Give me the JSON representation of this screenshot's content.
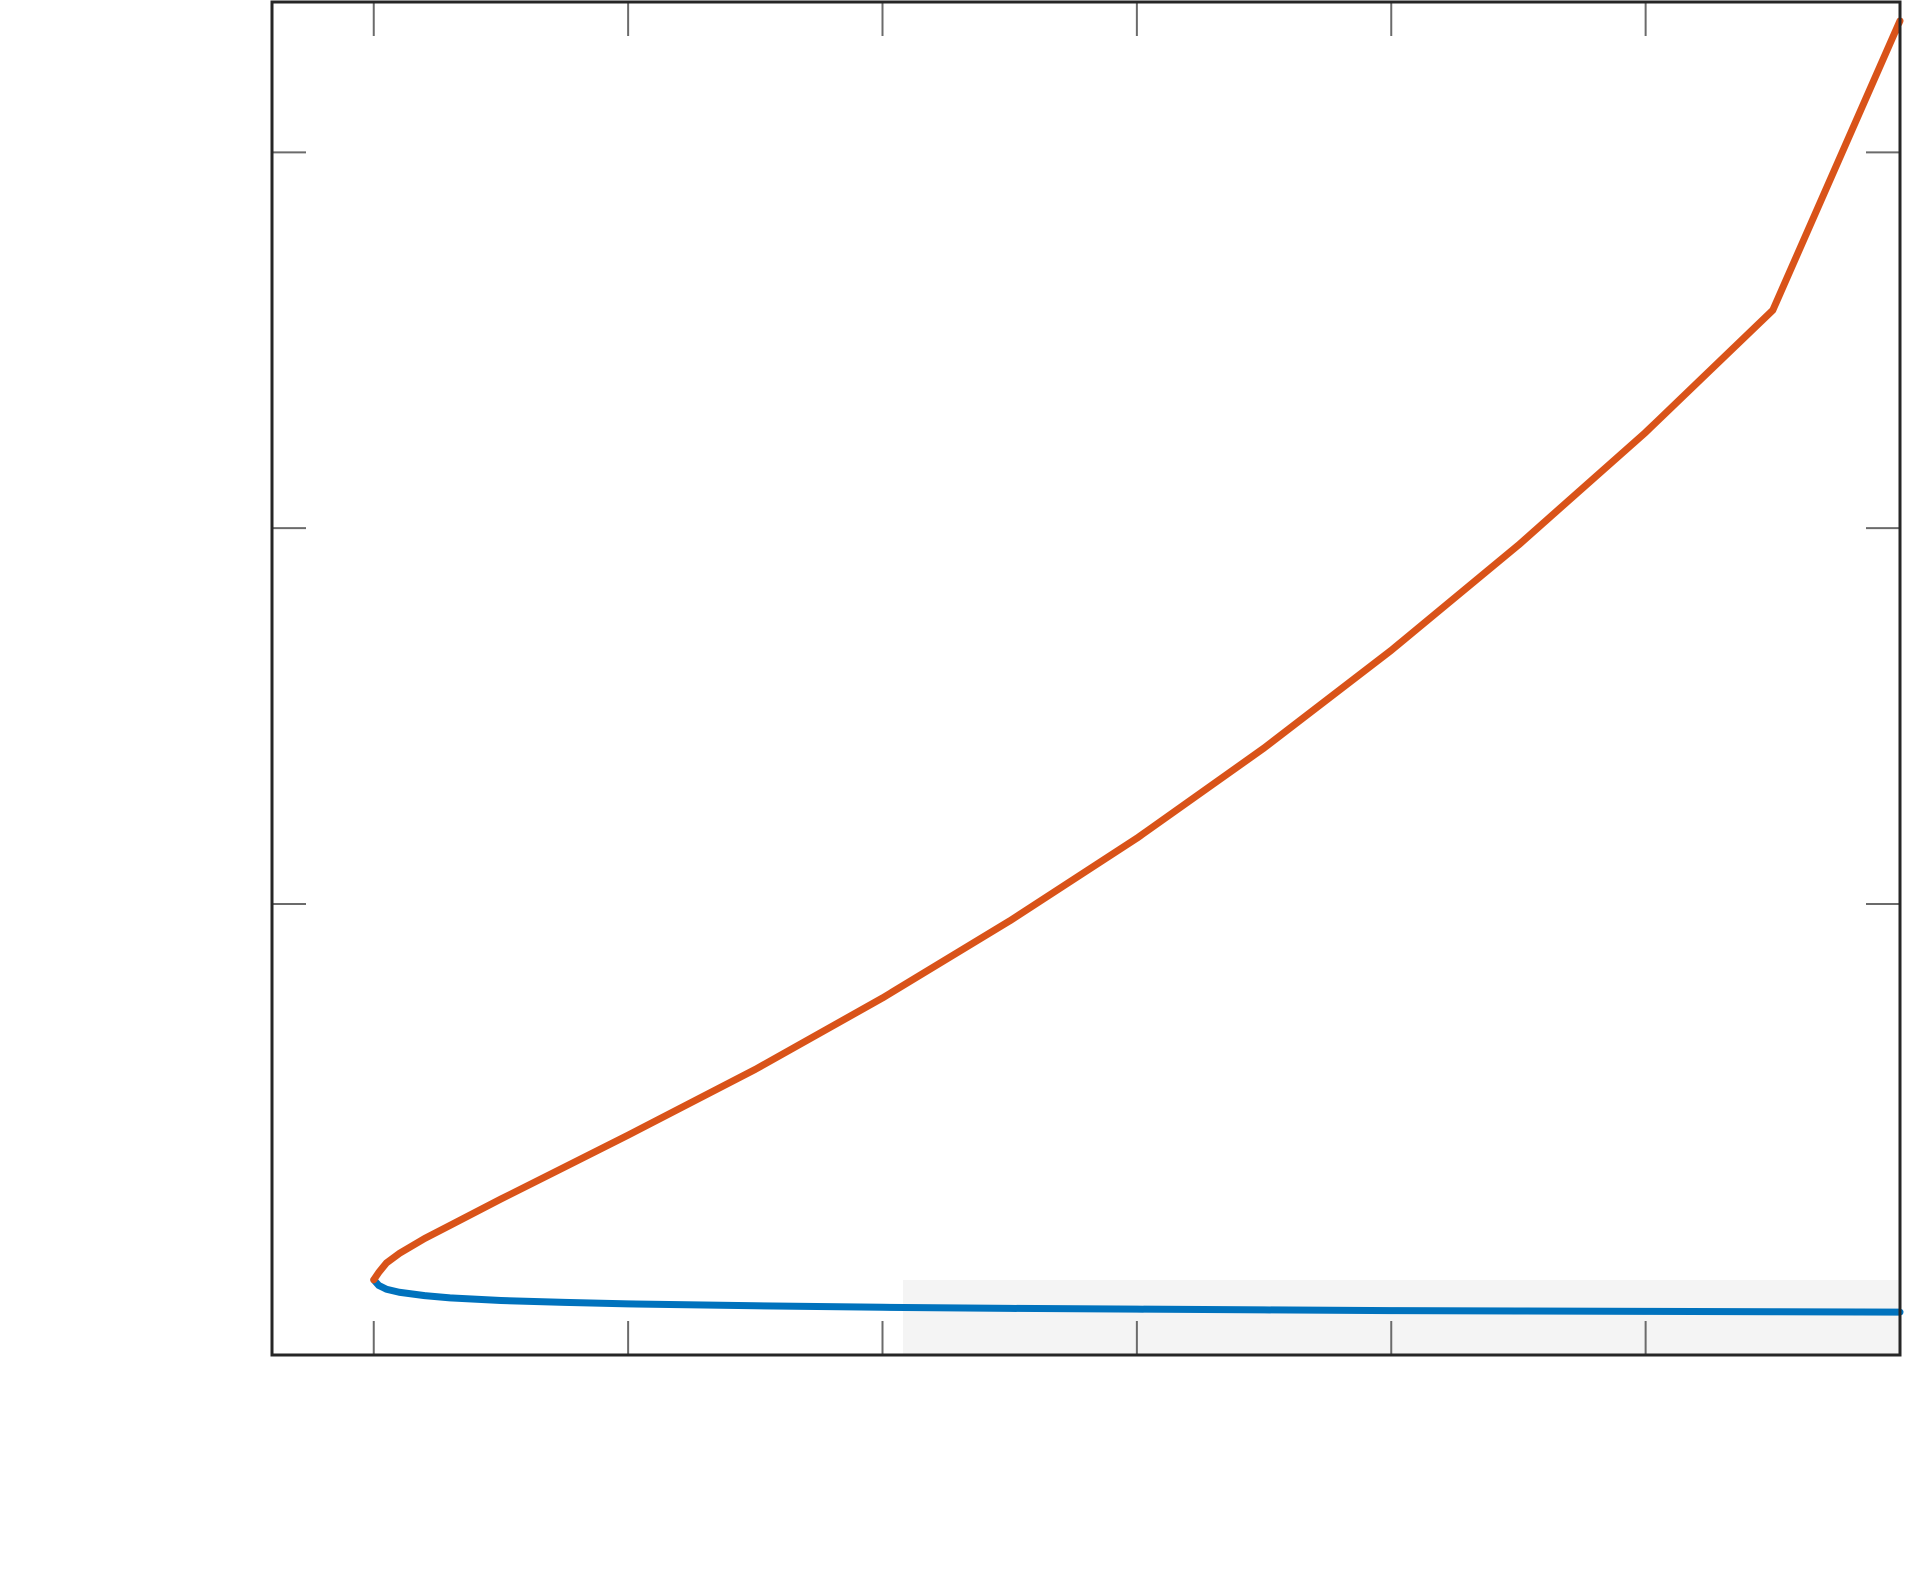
{
  "chart_data": {
    "type": "line",
    "title": "",
    "xlabel": "",
    "ylabel": "",
    "xlim": [
      -0.4,
      6.0
    ],
    "ylim": [
      -0.2,
      3.4
    ],
    "x_ticks": [
      0,
      1,
      2,
      3,
      4,
      5
    ],
    "y_ticks": [
      1,
      2,
      3
    ],
    "grid": false,
    "box": true,
    "series": [
      {
        "color": "#0072BD",
        "x": [
          0.0,
          0.02,
          0.05,
          0.1,
          0.2,
          0.3,
          0.5,
          0.75,
          1.0,
          1.5,
          2.0,
          2.5,
          3.0,
          3.5,
          4.0,
          4.5,
          5.0,
          5.5,
          6.0
        ],
        "y": [
          0.0,
          -0.015,
          -0.025,
          -0.033,
          -0.042,
          -0.048,
          -0.055,
          -0.06,
          -0.064,
          -0.069,
          -0.073,
          -0.076,
          -0.078,
          -0.08,
          -0.082,
          -0.083,
          -0.084,
          -0.085,
          -0.086
        ]
      },
      {
        "color": "#D95319",
        "x": [
          0.0,
          0.02,
          0.05,
          0.1,
          0.2,
          0.3,
          0.5,
          0.75,
          1.0,
          1.5,
          2.0,
          2.5,
          3.0,
          3.5,
          4.0,
          4.5,
          5.0,
          5.5,
          6.0
        ],
        "y": [
          0.0,
          0.02,
          0.045,
          0.07,
          0.11,
          0.145,
          0.215,
          0.3,
          0.385,
          0.56,
          0.75,
          0.955,
          1.175,
          1.415,
          1.675,
          1.955,
          2.255,
          2.58,
          3.35
        ]
      }
    ]
  }
}
